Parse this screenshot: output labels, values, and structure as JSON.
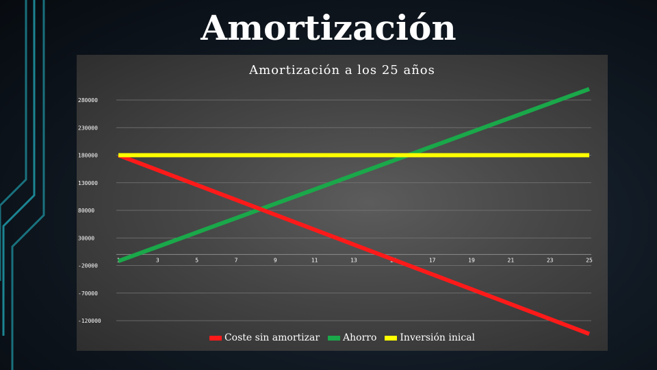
{
  "slide": {
    "title": "Amortización"
  },
  "chart_data": {
    "type": "line",
    "title": "Amortización a los 25 años",
    "xlabel": "",
    "ylabel": "",
    "x": [
      1,
      2,
      3,
      4,
      5,
      6,
      7,
      8,
      9,
      10,
      11,
      12,
      13,
      14,
      15,
      16,
      17,
      18,
      19,
      20,
      21,
      22,
      23,
      24,
      25
    ],
    "x_tick_labels": [
      "1",
      "3",
      "5",
      "7",
      "9",
      "11",
      "13",
      "15",
      "17",
      "19",
      "21",
      "23",
      "25"
    ],
    "y_tick_labels": [
      "280000",
      "230000",
      "180000",
      "130000",
      "80000",
      "30000",
      "-20000",
      "-70000",
      "-120000"
    ],
    "ylim": [
      -120000,
      280000
    ],
    "grid": true,
    "legend_position": "bottom",
    "series": [
      {
        "name": "Coste sin amortizar",
        "color": "#ff1a1a",
        "values": [
          180000,
          166500,
          153000,
          139500,
          126000,
          112500,
          99000,
          85500,
          72000,
          58500,
          45000,
          31500,
          18000,
          4500,
          -9000,
          -22500,
          -36000,
          -49500,
          -63000,
          -76500,
          -90000,
          -103500,
          -117000,
          -130500,
          -144000
        ]
      },
      {
        "name": "Ahorro",
        "color": "#1aa84a",
        "values": [
          -12000,
          1000,
          14000,
          27000,
          40000,
          53000,
          66000,
          79000,
          92000,
          105000,
          118000,
          131000,
          144000,
          157000,
          170000,
          183000,
          196000,
          209000,
          222000,
          235000,
          248000,
          261000,
          274000,
          287000,
          300000
        ]
      },
      {
        "name": "Inversión inical",
        "color": "#ffff00",
        "values": [
          180000,
          180000,
          180000,
          180000,
          180000,
          180000,
          180000,
          180000,
          180000,
          180000,
          180000,
          180000,
          180000,
          180000,
          180000,
          180000,
          180000,
          180000,
          180000,
          180000,
          180000,
          180000,
          180000,
          180000,
          180000
        ]
      }
    ]
  },
  "decor": {
    "accent_color": "#1f9aa8"
  }
}
